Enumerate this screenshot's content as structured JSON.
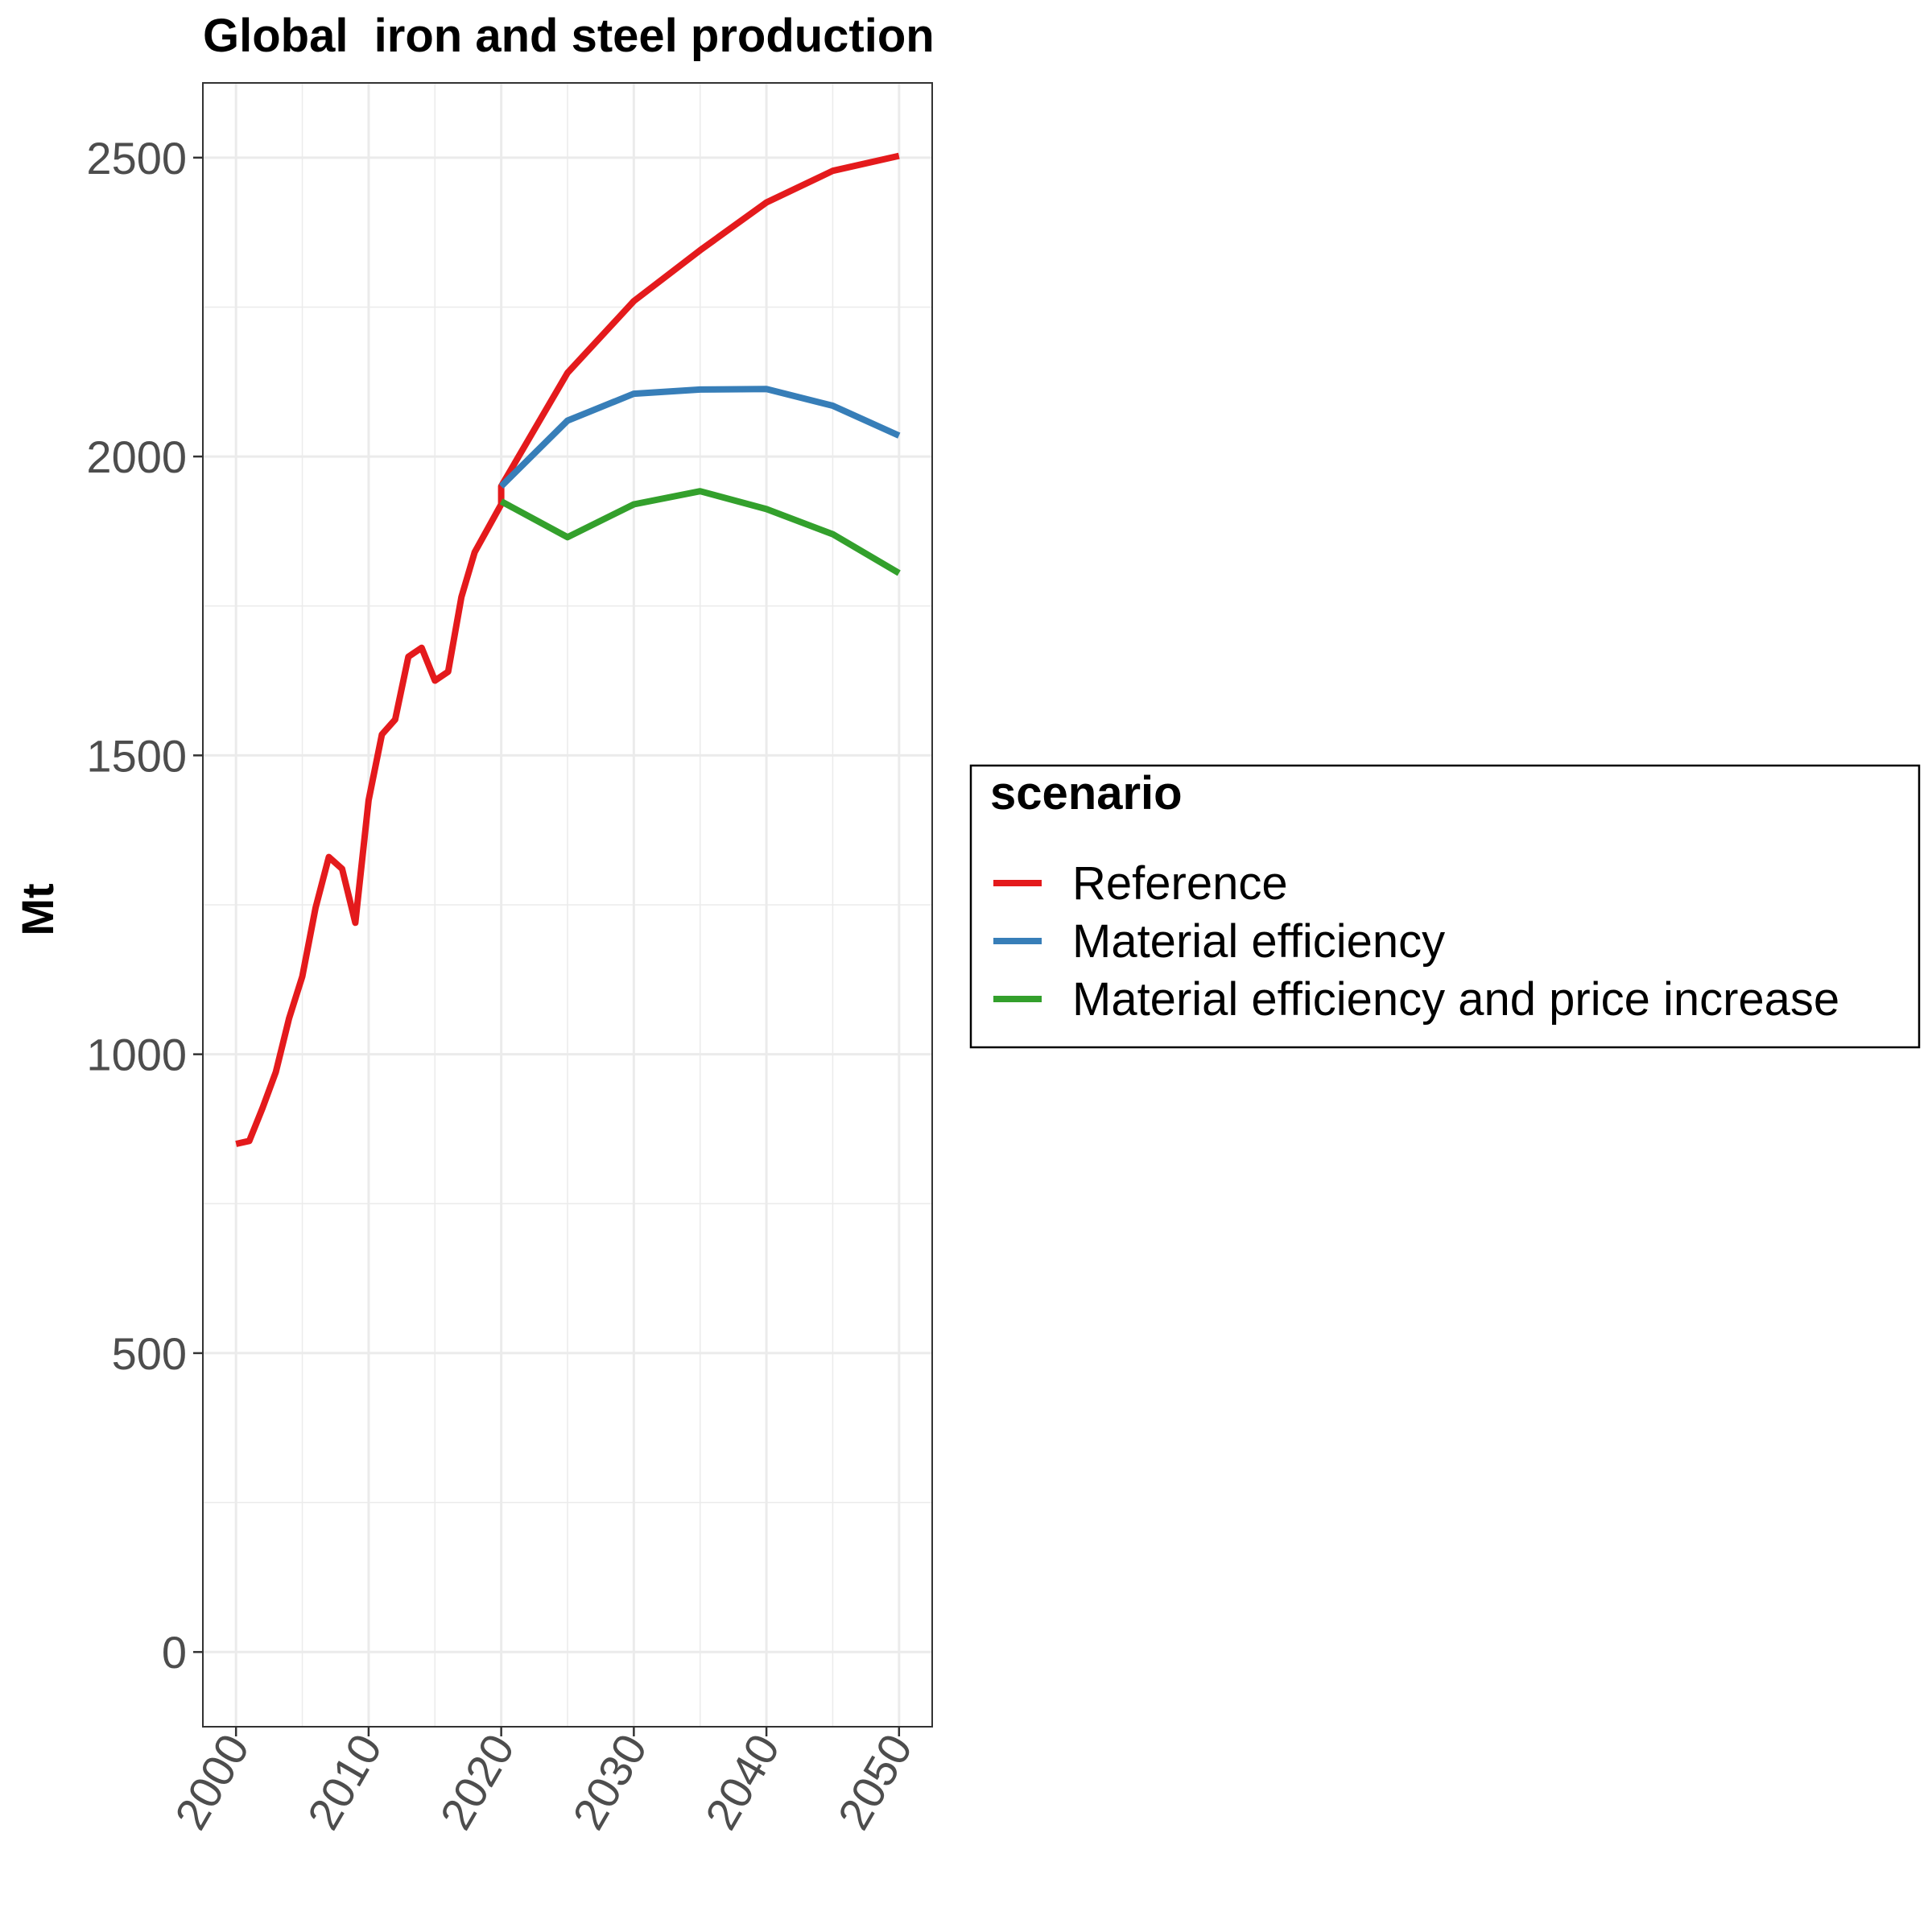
{
  "chart_data": {
    "type": "line",
    "title": "Global  iron and steel production",
    "xlabel": "",
    "ylabel": "Mt",
    "xlim": [
      1997.5,
      2052.5
    ],
    "ylim": [
      -125,
      2625
    ],
    "x_ticks": [
      2000,
      2010,
      2020,
      2030,
      2040,
      2050
    ],
    "y_ticks": [
      0,
      500,
      1000,
      1500,
      2000,
      2500
    ],
    "grid": true,
    "legend": {
      "title": "scenario",
      "position": "right"
    },
    "series": [
      {
        "name": "Reference",
        "color": "#e41a1c",
        "points": [
          [
            2000,
            850
          ],
          [
            2001,
            855
          ],
          [
            2002,
            910
          ],
          [
            2003,
            970
          ],
          [
            2004,
            1060
          ],
          [
            2005,
            1130
          ],
          [
            2006,
            1245
          ],
          [
            2007,
            1330
          ],
          [
            2008,
            1310
          ],
          [
            2009,
            1220
          ],
          [
            2010,
            1425
          ],
          [
            2011,
            1535
          ],
          [
            2012,
            1560
          ],
          [
            2013,
            1665
          ],
          [
            2014,
            1680
          ],
          [
            2015,
            1625
          ],
          [
            2016,
            1640
          ],
          [
            2017,
            1765
          ],
          [
            2018,
            1840
          ],
          [
            2019,
            1880
          ],
          [
            2020,
            1920
          ],
          [
            2020,
            1950
          ],
          [
            2025,
            2140
          ],
          [
            2030,
            2260
          ],
          [
            2035,
            2345
          ],
          [
            2040,
            2425
          ],
          [
            2045,
            2478
          ],
          [
            2050,
            2503
          ]
        ]
      },
      {
        "name": "Material efficiency",
        "color": "#377eb8",
        "points": [
          [
            2020,
            1950
          ],
          [
            2025,
            2060
          ],
          [
            2030,
            2105
          ],
          [
            2035,
            2112
          ],
          [
            2040,
            2113
          ],
          [
            2045,
            2085
          ],
          [
            2050,
            2035
          ]
        ]
      },
      {
        "name": "Material efficiency and price increase",
        "color": "#33a02c",
        "points": [
          [
            2020,
            1925
          ],
          [
            2025,
            1865
          ],
          [
            2030,
            1920
          ],
          [
            2035,
            1942
          ],
          [
            2040,
            1912
          ],
          [
            2045,
            1870
          ],
          [
            2050,
            1805
          ]
        ]
      }
    ]
  }
}
